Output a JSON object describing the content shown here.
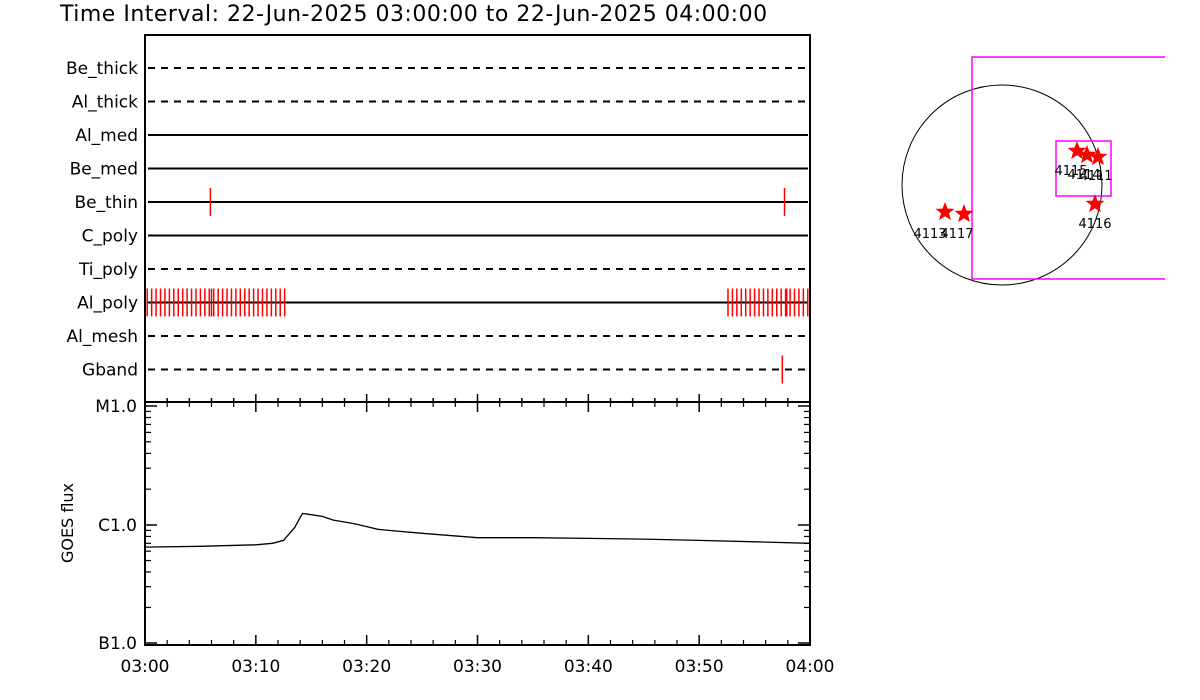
{
  "title": "Time Interval: 22-Jun-2025 03:00:00 to 22-Jun-2025 04:00:00",
  "colors": {
    "axis": "#000000",
    "event": "#ff0000",
    "fov": "#ff00ff",
    "flare_marker": "#ff0000"
  },
  "chart_data": [
    {
      "type": "line",
      "name": "filter-timeline",
      "time_range": [
        "03:00",
        "04:00"
      ],
      "filters": [
        {
          "label": "Be_thick",
          "line_style": "dashed",
          "events_minutes": []
        },
        {
          "label": "Al_thick",
          "line_style": "dashed",
          "events_minutes": []
        },
        {
          "label": "Al_med",
          "line_style": "solid",
          "events_minutes": []
        },
        {
          "label": "Be_med",
          "line_style": "solid",
          "events_minutes": []
        },
        {
          "label": "Be_thin",
          "line_style": "solid",
          "events_minutes": [
            5.9,
            57.7
          ]
        },
        {
          "label": "C_poly",
          "line_style": "solid",
          "events_minutes": []
        },
        {
          "label": "Ti_poly",
          "line_style": "dashed",
          "events_minutes": []
        },
        {
          "label": "Al_poly",
          "line_style": "solid",
          "events_minutes": [
            0.2,
            0.6,
            1.0,
            1.4,
            1.8,
            2.2,
            2.6,
            3.0,
            3.4,
            3.8,
            4.2,
            4.6,
            5.0,
            5.4,
            5.8,
            6.0,
            6.2,
            6.6,
            7.0,
            7.4,
            7.8,
            8.2,
            8.6,
            9.0,
            9.4,
            9.8,
            10.2,
            10.6,
            11.0,
            11.4,
            11.8,
            12.2,
            12.6,
            52.6,
            53.0,
            53.4,
            53.8,
            54.2,
            54.6,
            55.0,
            55.4,
            55.8,
            56.2,
            56.6,
            57.0,
            57.4,
            57.8,
            57.9,
            58.2,
            58.6,
            59.0,
            59.4,
            59.8
          ]
        },
        {
          "label": "Al_mesh",
          "line_style": "dashed",
          "events_minutes": []
        },
        {
          "label": "Gband",
          "line_style": "dashed",
          "events_minutes": [
            57.5
          ]
        }
      ]
    },
    {
      "type": "line",
      "name": "goes-flux",
      "xlabel": "",
      "ylabel": "GOES flux",
      "y_scale": "log",
      "y_tick_labels": [
        "B1.0",
        "C1.0",
        "M1.0"
      ],
      "ylim_class": [
        "B1.0",
        "M1.0"
      ],
      "x_tick_labels": [
        "03:00",
        "03:10",
        "03:20",
        "03:30",
        "03:40",
        "03:50",
        "04:00"
      ],
      "series": [
        {
          "x_minutes": [
            0,
            5,
            10,
            11.5,
            12.5,
            13.5,
            14.2,
            15,
            16,
            17,
            18,
            19,
            20,
            21,
            22,
            25,
            30,
            35,
            40,
            45,
            50,
            55,
            60
          ],
          "y_class": [
            "C0.65",
            "C0.66",
            "C0.68",
            "C0.70",
            "C0.74",
            "C0.95",
            "C1.25",
            "C1.22",
            "C1.18",
            "C1.10",
            "C1.06",
            "C1.02",
            "C0.97",
            "C0.92",
            "C0.90",
            "C0.85",
            "C0.78",
            "C0.78",
            "C0.77",
            "C0.76",
            "C0.74",
            "C0.72",
            "C0.70"
          ]
        }
      ]
    },
    {
      "type": "scatter",
      "name": "solar-disk-map",
      "active_regions": [
        {
          "label": "4113",
          "position": "east-limb"
        },
        {
          "label": "4117",
          "position": "east"
        },
        {
          "label": "4115",
          "position": "west"
        },
        {
          "label": "4114",
          "position": "west"
        },
        {
          "label": "4111",
          "position": "west"
        },
        {
          "label": "4116",
          "position": "west-south"
        }
      ]
    }
  ]
}
